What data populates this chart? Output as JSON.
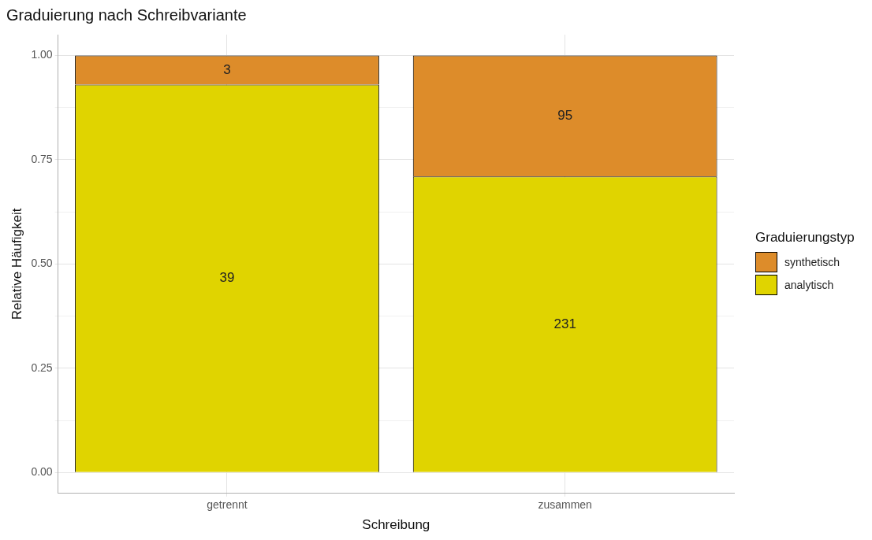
{
  "chart_data": {
    "type": "bar",
    "title": "Graduierung nach Schreibvariante",
    "xlabel": "Schreibung",
    "ylabel": "Relative Häufigkeit",
    "legend_title": "Graduierungstyp",
    "categories": [
      "getrennt",
      "zusammen"
    ],
    "series": [
      {
        "name": "analytisch",
        "color": "#e0d400",
        "values": [
          0.93,
          0.71
        ]
      },
      {
        "name": "synthetisch",
        "color": "#dd8c2a",
        "values": [
          0.07,
          0.29
        ]
      }
    ],
    "annotations": [
      "39",
      "231",
      "3",
      "95"
    ],
    "stacked": true,
    "ylim": [
      -0.05,
      1.05
    ],
    "yticks": [
      {
        "value": 0,
        "label": "0.00"
      },
      {
        "value": 0.125,
        "label": null
      },
      {
        "value": 0.25,
        "label": "0.25"
      },
      {
        "value": 0.375,
        "label": null
      },
      {
        "value": 0.5,
        "label": "0.50"
      },
      {
        "value": 0.625,
        "label": null
      },
      {
        "value": 0.75,
        "label": "0.75"
      },
      {
        "value": 0.875,
        "label": null
      },
      {
        "value": 1,
        "label": "1.00"
      }
    ],
    "grid": true,
    "legend": "right"
  }
}
